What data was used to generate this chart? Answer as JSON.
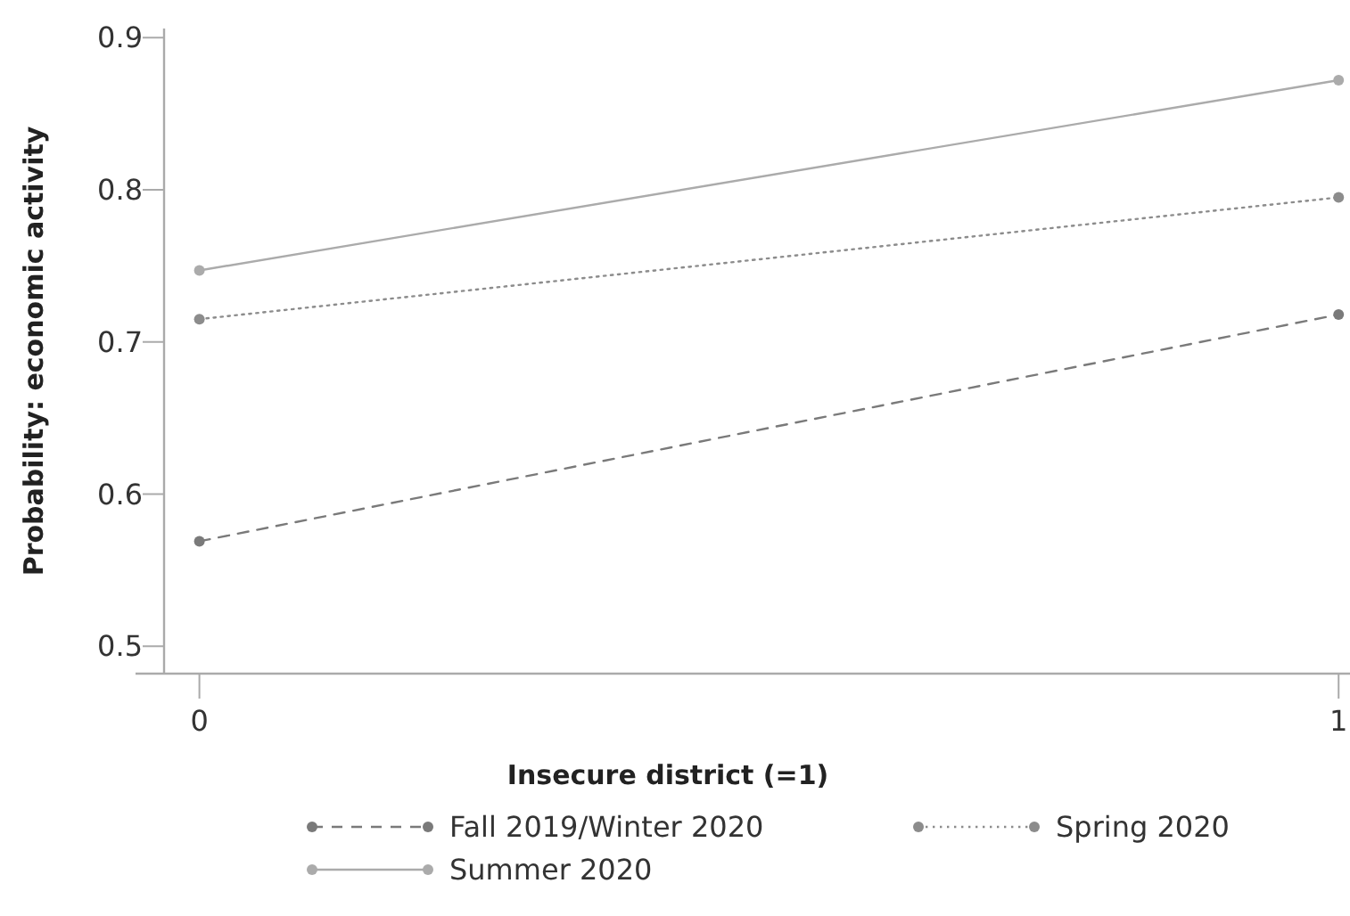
{
  "chart_data": {
    "type": "line",
    "xlabel": "Insecure district (=1)",
    "ylabel": "Probability: economic activity",
    "x": [
      0,
      1
    ],
    "xlim": [
      -0.031,
      1.01
    ],
    "xticks": [
      0,
      1
    ],
    "ylim": [
      0.482,
      0.906
    ],
    "yticks": [
      0.5,
      0.6,
      0.7,
      0.8,
      0.9
    ],
    "marker": "circle",
    "grid": false,
    "legend": "bottom",
    "series": [
      {
        "name": "Fall 2019/Winter 2020",
        "color": "#7a7a7a",
        "line_style": "dashed",
        "values": [
          0.569,
          0.718
        ]
      },
      {
        "name": "Spring 2020",
        "color": "#8c8c8c",
        "line_style": "dotted",
        "values": [
          0.715,
          0.795
        ]
      },
      {
        "name": "Summer 2020",
        "color": "#ababab",
        "line_style": "solid",
        "values": [
          0.747,
          0.872
        ]
      }
    ]
  }
}
